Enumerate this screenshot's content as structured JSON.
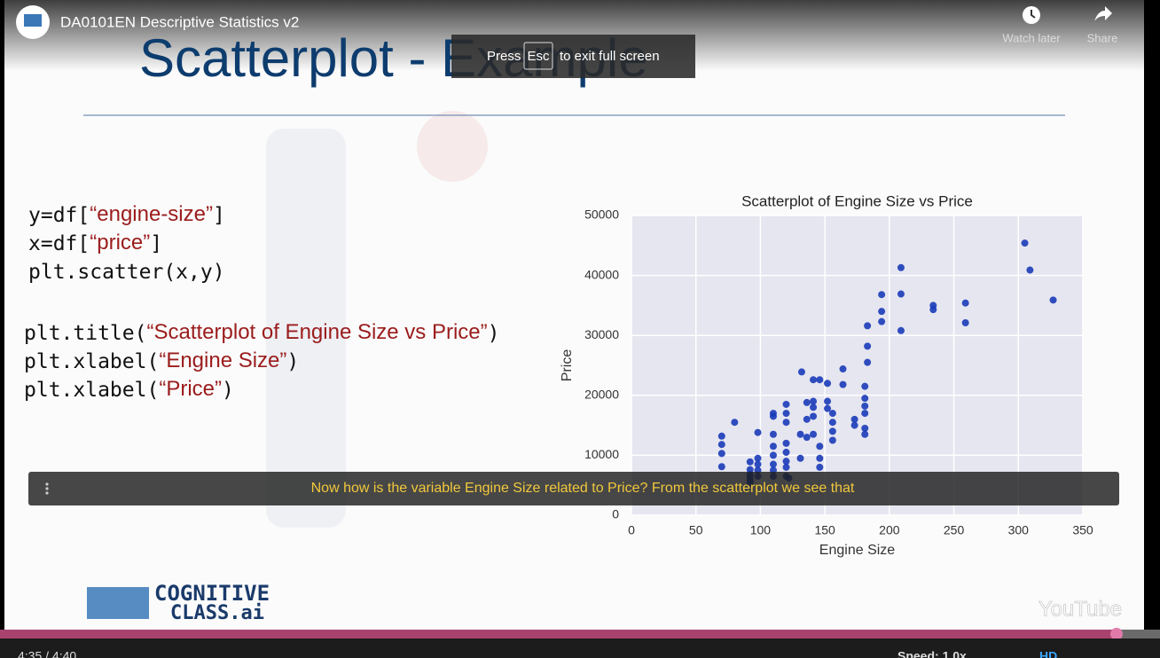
{
  "header": {
    "channel_title": "DA0101EN Descriptive Statistics v2",
    "watch_later": "Watch later",
    "share": "Share"
  },
  "overlay": {
    "press": "Press",
    "key": "Esc",
    "suffix": "to exit full screen"
  },
  "slide": {
    "title": "Scatterplot - Example",
    "code": [
      {
        "code": "y=df[",
        "string": "“engine-size”",
        "end": "]"
      },
      {
        "code": "x=df[",
        "string": "“price”",
        "end": "]"
      },
      {
        "code": "plt.scatter(x,y)"
      },
      {
        "code": "plt.title(",
        "string": "“Scatterplot of Engine Size vs Price”",
        "end": ")"
      },
      {
        "code": "plt.xlabel(",
        "string": "“Engine Size”",
        "end": ")"
      },
      {
        "code": "plt.xlabel(",
        "string": "“Price”",
        "end": ")"
      }
    ],
    "logo": {
      "line1": "COGNITIVE",
      "line2": "CLASS.ai"
    }
  },
  "caption": "Now how is the variable Engine Size related to Price? From the scatterplot we see that",
  "watermark": "YouTube",
  "player": {
    "time": "4:35 / 4:40",
    "speed": "Speed: 1.0x",
    "quality": "HD"
  },
  "chart_data": {
    "type": "scatter",
    "title": "Scatterplot of Engine Size vs Price",
    "x_label": "Engine Size",
    "y_label": "Price",
    "color": "#1a3bb8",
    "grid": true,
    "xlim": [
      0,
      350
    ],
    "ylim": [
      0,
      50000
    ],
    "xticks": [
      0,
      50,
      100,
      150,
      200,
      250,
      300,
      350
    ],
    "yticks": [
      0,
      10000,
      20000,
      30000,
      40000,
      50000
    ],
    "x": [
      305,
      309,
      327,
      259,
      259,
      234,
      234,
      209,
      209,
      209,
      194,
      194,
      194,
      183,
      183,
      183,
      164,
      181,
      181,
      181,
      181,
      181,
      181,
      173,
      173,
      164,
      156,
      156,
      156,
      156,
      152,
      152,
      146,
      141,
      152,
      132,
      141,
      141,
      141,
      141,
      136,
      136,
      136,
      131,
      131,
      120,
      120,
      120,
      120,
      120,
      120,
      120,
      120,
      110,
      110,
      110,
      110,
      110,
      110,
      110,
      110,
      146,
      146,
      146,
      98,
      98,
      98,
      98,
      98,
      92,
      92,
      92,
      92,
      92,
      92,
      80,
      70,
      70,
      70,
      70,
      122
    ],
    "values": [
      45400,
      40900,
      35900,
      35400,
      32100,
      35000,
      34300,
      41300,
      36900,
      30800,
      36800,
      34000,
      32300,
      31600,
      28200,
      25500,
      24400,
      21500,
      19500,
      18200,
      17000,
      14500,
      13500,
      16000,
      15000,
      21800,
      17000,
      15500,
      14000,
      12500,
      19000,
      17800,
      22600,
      22600,
      22000,
      23900,
      19000,
      18000,
      16500,
      13500,
      18800,
      16000,
      13000,
      13500,
      9500,
      18500,
      17000,
      15500,
      12000,
      10500,
      9000,
      8000,
      6500,
      17000,
      16500,
      13500,
      11500,
      10000,
      8500,
      7500,
      6500,
      11500,
      9500,
      8000,
      13800,
      9500,
      8500,
      7500,
      6500,
      8900,
      7600,
      6800,
      6400,
      5800,
      5400,
      15500,
      13200,
      11800,
      10300,
      8100,
      6200
    ]
  }
}
